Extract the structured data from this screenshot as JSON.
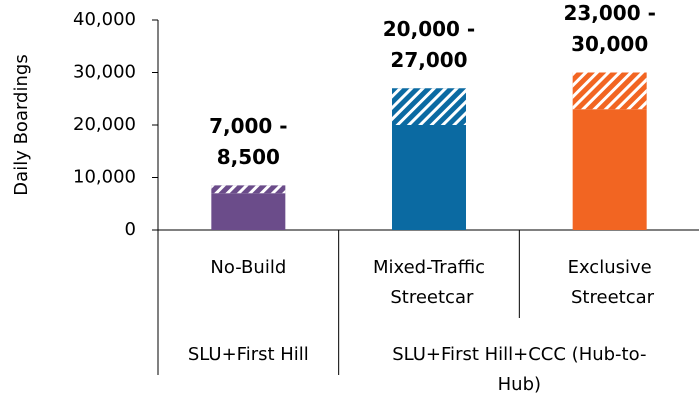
{
  "chart_data": {
    "type": "bar",
    "stacked": true,
    "y_label": "Daily Boardings",
    "categories": [
      "No-Build",
      "Mixed-Traffic Streetcar",
      "Exclusive Streetcar"
    ],
    "colors": [
      "#6b4c8a",
      "#0b6aa2",
      "#f26522"
    ],
    "series": [
      {
        "values": [
          7000,
          20000,
          23000
        ],
        "pattern": "solid"
      },
      {
        "values": [
          1500,
          7000,
          7000
        ],
        "pattern": "hatched"
      }
    ],
    "range_labels": [
      [
        "7,000 -",
        "8,500"
      ],
      [
        "20,000 -",
        "27,000"
      ],
      [
        "23,000 -",
        "30,000"
      ]
    ],
    "groups": [
      {
        "label": [
          "SLU+First Hill"
        ],
        "span": 1
      },
      {
        "label": [
          "SLU+First Hill+CCC (Hub-to-",
          "Hub)"
        ],
        "span": 2
      }
    ],
    "ylim": [
      0,
      40000
    ],
    "yticks": [
      {
        "value": 0,
        "label": "0"
      },
      {
        "value": 10000,
        "label": "10,000"
      },
      {
        "value": 20000,
        "label": "20,000"
      },
      {
        "value": 30000,
        "label": "30,000"
      },
      {
        "value": 40000,
        "label": "40,000"
      }
    ]
  }
}
